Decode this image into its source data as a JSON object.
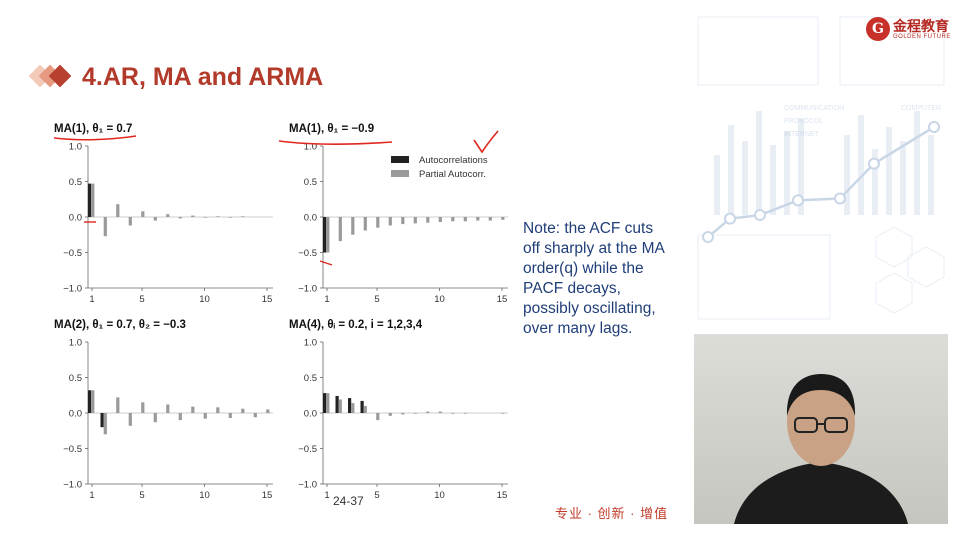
{
  "slide": {
    "title": "4.AR, MA and ARMA",
    "note": "Note: the ACF cuts off sharply at the MA order(q) while the PACF decays, possibly oscillating, over many lags.",
    "page_number": "24-37",
    "slogan": "专业 · 创新 · 增值",
    "logo": {
      "chinese": "金程教育",
      "english": "GOLDEN FUTURE",
      "glyph": "G"
    }
  },
  "colors": {
    "acf": "#222222",
    "pacf": "#9a9a9a",
    "title": "#b23a2a",
    "note": "#1f3e78",
    "annotation": "#e0281e"
  },
  "background": {
    "labels": [
      "COMMUNICATION",
      "PROTOCOL",
      "INTERNET",
      "COMPUTER"
    ],
    "line_values": [
      1,
      2,
      2.2,
      3,
      3.1,
      5,
      7
    ]
  },
  "chart_data": [
    {
      "type": "bar",
      "title": "MA(1), θ₁ = 0.7",
      "ylim": [
        -1.0,
        1.0
      ],
      "yticks": [
        "1.0",
        "0.5",
        "0.0",
        "−0.5",
        "−1.0"
      ],
      "xticks": [
        "1",
        "5",
        "10",
        "15"
      ],
      "lags": 15,
      "legend": [],
      "series": [
        {
          "name": "Autocorrelations",
          "values": [
            0.47,
            0,
            0,
            0,
            0,
            0,
            0,
            0,
            0,
            0,
            0,
            0,
            0,
            0,
            0
          ]
        },
        {
          "name": "Partial Autocorr.",
          "values": [
            0.47,
            -0.27,
            0.18,
            -0.12,
            0.08,
            -0.05,
            0.04,
            -0.02,
            0.02,
            -0.01,
            0.01,
            -0.01,
            0.01,
            0,
            0
          ]
        }
      ]
    },
    {
      "type": "bar",
      "title": "MA(1), θ₁ = −0.9",
      "ylim": [
        -1.0,
        1.0
      ],
      "yticks": [
        "1.0",
        "0.5",
        "0.0",
        "−0.5",
        "−1.0"
      ],
      "xticks": [
        "1",
        "5",
        "10",
        "15"
      ],
      "lags": 15,
      "legend": [
        "Autocorrelations",
        "Partial Autocorr."
      ],
      "series": [
        {
          "name": "Autocorrelations",
          "values": [
            -0.5,
            0,
            0,
            0,
            0,
            0,
            0,
            0,
            0,
            0,
            0,
            0,
            0,
            0,
            0
          ]
        },
        {
          "name": "Partial Autocorr.",
          "values": [
            -0.5,
            -0.34,
            -0.25,
            -0.19,
            -0.15,
            -0.12,
            -0.1,
            -0.09,
            -0.08,
            -0.07,
            -0.06,
            -0.06,
            -0.05,
            -0.05,
            -0.04
          ]
        }
      ]
    },
    {
      "type": "bar",
      "title": "MA(2), θ₁ = 0.7, θ₂ = −0.3",
      "ylim": [
        -1.0,
        1.0
      ],
      "yticks": [
        "1.0",
        "0.5",
        "0.0",
        "−0.5",
        "−1.0"
      ],
      "xticks": [
        "1",
        "5",
        "10",
        "15"
      ],
      "lags": 15,
      "legend": [],
      "series": [
        {
          "name": "Autocorrelations",
          "values": [
            0.32,
            -0.2,
            0,
            0,
            0,
            0,
            0,
            0,
            0,
            0,
            0,
            0,
            0,
            0,
            0
          ]
        },
        {
          "name": "Partial Autocorr.",
          "values": [
            0.32,
            -0.3,
            0.22,
            -0.18,
            0.15,
            -0.13,
            0.12,
            -0.1,
            0.09,
            -0.08,
            0.08,
            -0.07,
            0.06,
            -0.06,
            0.05
          ]
        }
      ]
    },
    {
      "type": "bar",
      "title": "MA(4), θᵢ = 0.2, i = 1,2,3,4",
      "ylim": [
        -1.0,
        1.0
      ],
      "yticks": [
        "1.0",
        "0.5",
        "0.0",
        "−0.5",
        "−1.0"
      ],
      "xticks": [
        "1",
        "5",
        "10",
        "15"
      ],
      "lags": 15,
      "legend": [],
      "series": [
        {
          "name": "Autocorrelations",
          "values": [
            0.28,
            0.24,
            0.21,
            0.17,
            0,
            0,
            0,
            0,
            0,
            0,
            0,
            0,
            0,
            0,
            0
          ]
        },
        {
          "name": "Partial Autocorr.",
          "values": [
            0.28,
            0.19,
            0.14,
            0.1,
            -0.1,
            -0.04,
            -0.02,
            -0.01,
            0.02,
            0.02,
            -0.01,
            -0.01,
            0,
            0,
            -0.01
          ]
        }
      ]
    }
  ]
}
